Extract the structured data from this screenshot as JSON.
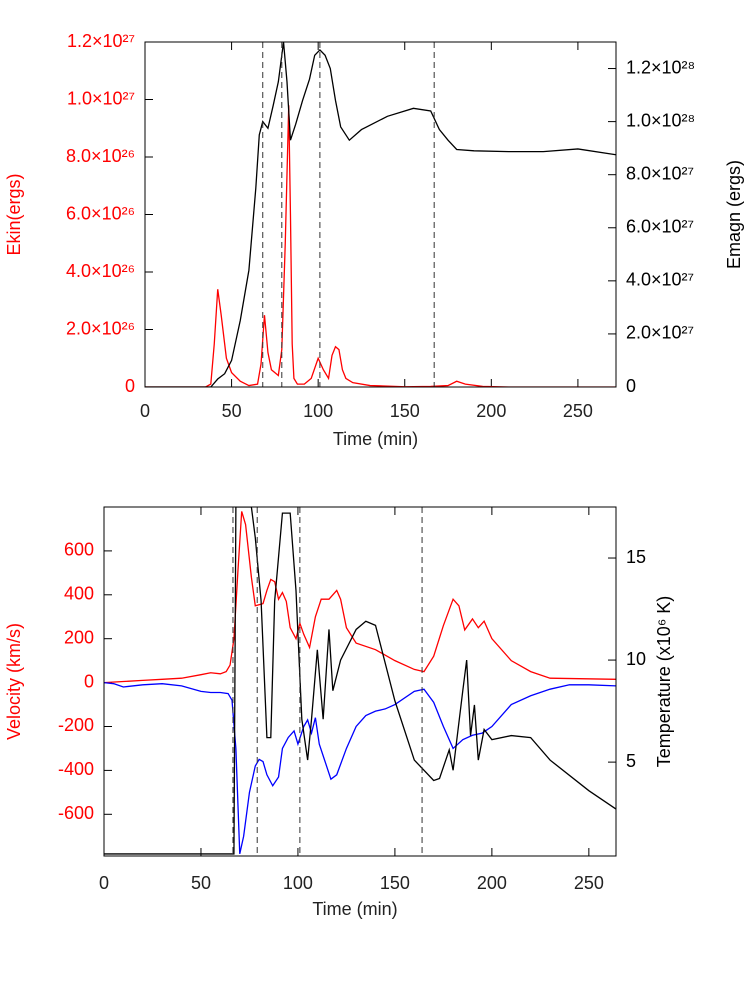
{
  "chart_data": [
    {
      "type": "line",
      "xlabel": "Time (min)",
      "ylabel": "Ekin(ergs)",
      "y2label": "Emagn (ergs)",
      "ycolor": "#ff0000",
      "y2color": "#000000",
      "xlim": [
        0,
        272
      ],
      "xticks": [
        0,
        50,
        100,
        150,
        200,
        250
      ],
      "ylim": [
        0,
        1.2e+27
      ],
      "yticks": [
        0,
        {
          "value": 2e+26,
          "label": "2.0×10²⁶"
        },
        {
          "value": 4e+26,
          "label": "4.0×10²⁶"
        },
        {
          "value": 6e+26,
          "label": "6.0×10²⁶"
        },
        {
          "value": 8e+26,
          "label": "8.0×10²⁶"
        },
        {
          "value": 1e+27,
          "label": "1.0×10²⁷"
        },
        {
          "value": 1.2e+27,
          "label": "1.2×10²⁷"
        }
      ],
      "y2lim": [
        0,
        1.3e+28
      ],
      "y2ticks": [
        0,
        {
          "value": 2e+27,
          "label": "2.0×10²⁷"
        },
        {
          "value": 4e+27,
          "label": "4.0×10²⁷"
        },
        {
          "value": 6e+27,
          "label": "6.0×10²⁷"
        },
        {
          "value": 8e+27,
          "label": "8.0×10²⁷"
        },
        {
          "value": 1e+28,
          "label": "1.0×10²⁸"
        },
        {
          "value": 1.2e+28,
          "label": "1.2×10²⁸"
        }
      ],
      "vlines": [
        68,
        79,
        101,
        167
      ],
      "series": [
        {
          "color": "#ff0000",
          "axis": "y",
          "x": [
            0,
            35,
            38,
            40,
            42,
            44,
            47,
            50,
            55,
            60,
            65,
            67,
            69,
            71,
            73,
            75,
            77,
            79,
            81,
            83,
            84,
            85,
            86,
            88,
            92,
            96,
            100,
            103,
            106,
            108,
            110,
            112,
            114,
            116,
            120,
            130,
            150,
            165,
            175,
            180,
            185,
            195,
            210,
            272
          ],
          "values": [
            0,
            0,
            1e+25,
            1.5e+26,
            3.4e+26,
            2.5e+26,
            1e+26,
            5e+25,
            2e+25,
            5e+24,
            1e+25,
            8e+25,
            2.5e+26,
            1.2e+26,
            6e+25,
            5e+25,
            4e+25,
            1.3e+26,
            5e+26,
            9.8e+26,
            6e+26,
            1.5e+26,
            3e+25,
            1e+25,
            1e+25,
            3e+25,
            1e+26,
            6e+25,
            3e+25,
            1.1e+26,
            1.4e+26,
            1.3e+26,
            6e+25,
            3e+25,
            1.5e+25,
            5e+24,
            1e+24,
            2e+24,
            5e+24,
            2e+25,
            1e+25,
            2e+24,
            0,
            0
          ]
        },
        {
          "color": "#000000",
          "axis": "y2",
          "x": [
            0,
            38,
            42,
            46,
            50,
            55,
            60,
            64,
            66,
            68,
            71,
            74,
            77,
            80,
            82,
            84,
            87,
            91,
            95,
            98,
            101,
            104,
            107,
            110,
            113,
            118,
            125,
            140,
            155,
            165,
            170,
            175,
            180,
            190,
            210,
            230,
            250,
            272
          ],
          "values": [
            0,
            0,
            3e+26,
            5e+26,
            1e+27,
            2.5e+27,
            4.4e+27,
            7.5e+27,
            9.5e+27,
            1e+28,
            9.75e+27,
            1.06e+28,
            1.15e+28,
            1.3e+28,
            1.15e+28,
            9.3e+27,
            9.9e+27,
            1.08e+28,
            1.16e+28,
            1.25e+28,
            1.27e+28,
            1.25e+28,
            1.2e+28,
            1.08e+28,
            9.8e+27,
            9.3e+27,
            9.7e+27,
            1.02e+28,
            1.05e+28,
            1.04e+28,
            9.7e+27,
            9.3e+27,
            8.95e+27,
            8.9e+27,
            8.87e+27,
            8.87e+27,
            8.97e+27,
            8.75e+27
          ]
        }
      ]
    },
    {
      "type": "line",
      "xlabel": "Time (min)",
      "ylabel": "Velocity (km/s)",
      "y2label": "Temperature (x10⁶ K)",
      "ycolor": "#ff0000",
      "y2color": "#000000",
      "xlim": [
        0,
        264
      ],
      "xticks": [
        0,
        50,
        100,
        150,
        200,
        250
      ],
      "ylim": [
        -790,
        800
      ],
      "yticks": [
        -600,
        -400,
        -200,
        0,
        200,
        400,
        600
      ],
      "y2lim": [
        0.4,
        17.5
      ],
      "y2ticks": [
        5,
        10,
        15
      ],
      "vlines": [
        66.5,
        79,
        101,
        164
      ],
      "series": [
        {
          "color": "#ff0000",
          "axis": "y",
          "x": [
            0,
            10,
            20,
            30,
            40,
            50,
            55,
            60,
            63,
            65,
            67,
            69,
            71,
            73,
            76,
            78,
            82,
            84,
            86,
            88,
            90,
            92,
            94,
            96,
            99,
            101,
            103,
            106,
            109,
            112,
            116,
            120,
            122,
            125,
            130,
            140,
            150,
            160,
            165,
            170,
            175,
            180,
            183,
            186,
            190,
            193,
            196,
            200,
            210,
            220,
            230,
            264
          ],
          "values": [
            0,
            5,
            10,
            15,
            20,
            36,
            45,
            40,
            50,
            80,
            200,
            500,
            780,
            720,
            480,
            350,
            360,
            420,
            470,
            460,
            380,
            410,
            370,
            250,
            200,
            270,
            220,
            160,
            300,
            380,
            380,
            420,
            380,
            250,
            180,
            150,
            100,
            60,
            50,
            120,
            260,
            380,
            350,
            240,
            290,
            250,
            280,
            200,
            100,
            50,
            20,
            15
          ]
        },
        {
          "color": "#0000ff",
          "axis": "y",
          "x": [
            0,
            5,
            10,
            20,
            30,
            40,
            50,
            55,
            60,
            64,
            66,
            68,
            70,
            72,
            75,
            78,
            80,
            82,
            84,
            87,
            90,
            92,
            95,
            98,
            100,
            103,
            105,
            107,
            109,
            111,
            114,
            117,
            120,
            125,
            130,
            135,
            140,
            145,
            150,
            160,
            165,
            170,
            175,
            180,
            185,
            190,
            195,
            200,
            210,
            220,
            230,
            240,
            250,
            264
          ],
          "values": [
            0,
            -5,
            -20,
            -10,
            -5,
            -15,
            -40,
            -45,
            -45,
            -50,
            -80,
            -300,
            -780,
            -700,
            -500,
            -380,
            -350,
            -360,
            -420,
            -470,
            -430,
            -300,
            -250,
            -220,
            -280,
            -200,
            -170,
            -230,
            -160,
            -280,
            -360,
            -440,
            -420,
            -300,
            -200,
            -150,
            -130,
            -120,
            -100,
            -40,
            -30,
            -90,
            -200,
            -300,
            -260,
            -240,
            -230,
            -200,
            -100,
            -60,
            -30,
            -10,
            -10,
            -15
          ]
        },
        {
          "color": "#000000",
          "axis": "y2",
          "x": [
            0,
            65,
            67,
            68,
            72,
            76,
            78,
            81,
            84,
            86,
            88,
            92,
            96,
            99,
            102,
            105,
            107,
            110,
            113,
            116,
            118,
            122,
            130,
            135,
            140,
            150,
            160,
            170,
            173,
            178,
            180,
            185,
            187,
            189,
            191,
            193,
            196,
            200,
            210,
            220,
            230,
            250,
            264
          ],
          "values": [
            0.5,
            0.5,
            0.5,
            17.5,
            17.5,
            17.5,
            16,
            12.9,
            6.2,
            6.2,
            12.9,
            17.2,
            17.2,
            13.4,
            7.1,
            5.1,
            7.1,
            10.5,
            7.1,
            11.5,
            8.5,
            10,
            11.5,
            11.9,
            11.7,
            8,
            5.1,
            4.1,
            4.2,
            5.6,
            4.6,
            8.5,
            10,
            6.3,
            7.8,
            5.1,
            6.6,
            6.1,
            6.3,
            6.2,
            5.1,
            3.6,
            2.7
          ]
        }
      ]
    }
  ]
}
